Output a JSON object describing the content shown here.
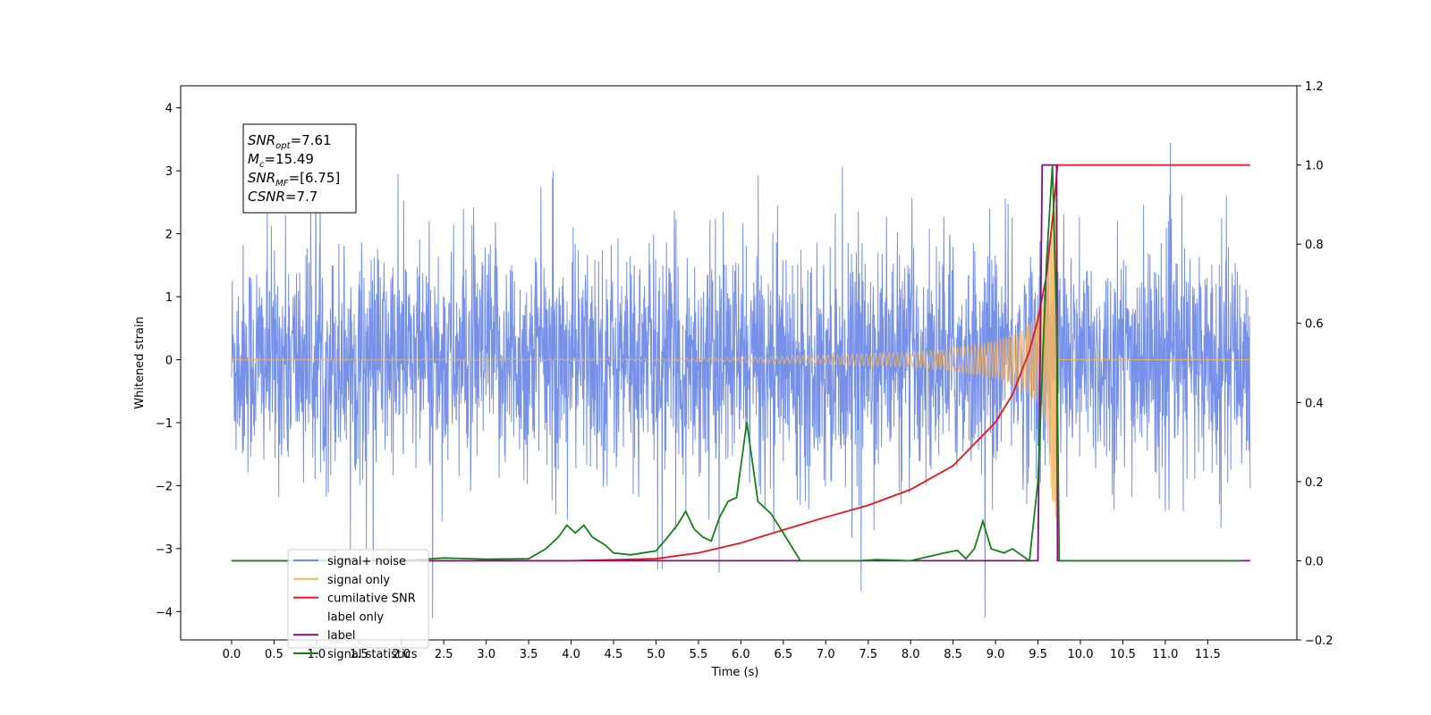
{
  "chart_data": {
    "type": "line",
    "title": "",
    "xlabel": "Time (s)",
    "ylabel_left": "Whitened strain",
    "ylabel_right": "",
    "xlim": [
      -0.6,
      12.55
    ],
    "ylim_left": [
      -4.45,
      4.35
    ],
    "ylim_right": [
      -0.2,
      1.2
    ],
    "x_ticks": [
      0.0,
      0.5,
      1.0,
      1.5,
      2.0,
      2.5,
      3.0,
      3.5,
      4.0,
      4.5,
      5.0,
      5.5,
      6.0,
      6.5,
      7.0,
      7.5,
      8.0,
      8.5,
      9.0,
      9.5,
      10.0,
      10.5,
      11.0,
      11.5
    ],
    "x_tick_labels": [
      "0.0",
      "0.5",
      "1.0",
      "1.5",
      "2.0",
      "2.5",
      "3.0",
      "3.5",
      "4.0",
      "4.5",
      "5.0",
      "5.5",
      "6.0",
      "6.5",
      "7.0",
      "7.5",
      "8.0",
      "8.5",
      "9.0",
      "9.5",
      "10.0",
      "10.5",
      "11.0",
      "11.5"
    ],
    "y_left_ticks": [
      4,
      3,
      2,
      1,
      0,
      -1,
      -2,
      -3,
      -4
    ],
    "y_left_tick_labels": [
      "4",
      "3",
      "2",
      "1",
      "0",
      "−1",
      "−2",
      "−3",
      "−4"
    ],
    "y_right_ticks": [
      1.2,
      1.0,
      0.8,
      0.6,
      0.4,
      0.2,
      0.0,
      -0.2
    ],
    "y_right_tick_labels": [
      "1.2",
      "1.0",
      "0.8",
      "0.6",
      "0.4",
      "0.2",
      "0.0",
      "−0.2"
    ],
    "grid": false,
    "legend_placement": "lower-left",
    "series": [
      {
        "name": "signal+ noise",
        "axis": "left",
        "color": "#6f8be6",
        "description": "whitened noise plus injected signal, roughly within [-2.5, 2.5] with spikes to about 4, spanning 0 to 12 s"
      },
      {
        "name": "signal only",
        "axis": "left",
        "color": "#f4b460",
        "description": "chirp: amplitude grows from 0 to about 2.6 peaking near 9.7 s, zero elsewhere",
        "x": [
          0.0,
          5.0,
          6.0,
          7.0,
          8.0,
          8.5,
          9.0,
          9.3,
          9.5,
          9.6,
          9.66,
          9.72,
          9.73,
          12.0
        ],
        "envelope": [
          0.0,
          0.02,
          0.04,
          0.07,
          0.12,
          0.17,
          0.3,
          0.45,
          0.7,
          1.1,
          2.2,
          2.6,
          0.0,
          0.0
        ]
      },
      {
        "name": "cumilative SNR",
        "axis": "right",
        "color": "#e8141e",
        "x": [
          2.0,
          4.0,
          5.0,
          5.5,
          6.0,
          6.5,
          7.0,
          7.5,
          8.0,
          8.5,
          9.0,
          9.2,
          9.4,
          9.5,
          9.6,
          9.68,
          9.73,
          12.0
        ],
        "values": [
          0.0,
          0.0,
          0.005,
          0.02,
          0.045,
          0.078,
          0.11,
          0.14,
          0.18,
          0.24,
          0.35,
          0.42,
          0.53,
          0.61,
          0.72,
          0.88,
          1.0,
          1.0
        ]
      },
      {
        "name": "label only",
        "axis": "right",
        "color": "#ffffff",
        "values": []
      },
      {
        "name": "label",
        "axis": "right",
        "color": "#7f0f7e",
        "x": [
          0.0,
          9.5,
          9.55,
          9.72,
          9.73,
          12.0
        ],
        "values": [
          0.0,
          0.0,
          1.0,
          1.0,
          0.0,
          0.0
        ]
      },
      {
        "name": "signal statistics",
        "axis": "right",
        "color": "#15801a",
        "x": [
          0.0,
          2.0,
          2.5,
          3.0,
          3.5,
          3.7,
          3.85,
          3.95,
          4.05,
          4.15,
          4.25,
          4.4,
          4.5,
          4.7,
          5.0,
          5.1,
          5.25,
          5.35,
          5.45,
          5.55,
          5.65,
          5.75,
          5.85,
          5.95,
          6.07,
          6.2,
          6.35,
          6.5,
          6.7,
          7.4,
          7.6,
          8.0,
          8.4,
          8.55,
          8.65,
          8.75,
          8.85,
          8.95,
          9.1,
          9.2,
          9.3,
          9.4,
          9.5,
          9.6,
          9.67,
          9.72,
          9.75,
          11.9
        ],
        "values": [
          0.0,
          0.0,
          0.007,
          0.004,
          0.005,
          0.03,
          0.06,
          0.09,
          0.07,
          0.09,
          0.06,
          0.04,
          0.02,
          0.015,
          0.025,
          0.05,
          0.09,
          0.125,
          0.08,
          0.06,
          0.05,
          0.11,
          0.15,
          0.16,
          0.35,
          0.15,
          0.12,
          0.07,
          0.0,
          0.0,
          0.003,
          0.0,
          0.02,
          0.026,
          0.005,
          0.03,
          0.1,
          0.03,
          0.02,
          0.03,
          0.015,
          0.0,
          0.2,
          0.75,
          1.0,
          0.6,
          0.0,
          0.0
        ]
      }
    ],
    "annotation": {
      "lines": [
        {
          "main": "SNR",
          "sub": "opt",
          "rest": "=7.61"
        },
        {
          "main": "M",
          "sub": "c",
          "rest": "=15.49"
        },
        {
          "main": "SNR",
          "sub": "MF",
          "rest": "=[6.75]"
        },
        {
          "main": "CSNR",
          "sub": "",
          "rest": "=7.7"
        }
      ]
    }
  }
}
